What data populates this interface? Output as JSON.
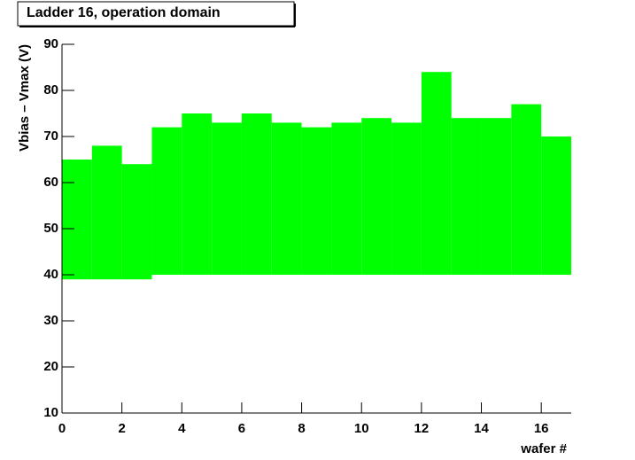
{
  "chart_data": {
    "type": "floating-bar",
    "title": "Ladder 16, operation domain",
    "x_label": "wafer #",
    "y_label": "Vbias – Vmax (V)",
    "bins": [
      0,
      1,
      2,
      3,
      4,
      5,
      6,
      7,
      8,
      9,
      10,
      11,
      12,
      13,
      14,
      15,
      16,
      17
    ],
    "low": [
      39,
      39,
      39,
      40,
      40,
      40,
      40,
      40,
      40,
      40,
      40,
      40,
      40,
      40,
      40,
      40,
      40
    ],
    "high": [
      65,
      68,
      64,
      72,
      75,
      73,
      75,
      73,
      72,
      73,
      74,
      73,
      84,
      74,
      74,
      77,
      70
    ],
    "color": "#00ff00",
    "xlim": [
      0,
      17
    ],
    "xticks": [
      0,
      2,
      4,
      6,
      8,
      10,
      12,
      14,
      16
    ],
    "ylim": [
      10,
      90
    ],
    "yticks": [
      10,
      20,
      30,
      40,
      50,
      60,
      70,
      80,
      90
    ]
  }
}
